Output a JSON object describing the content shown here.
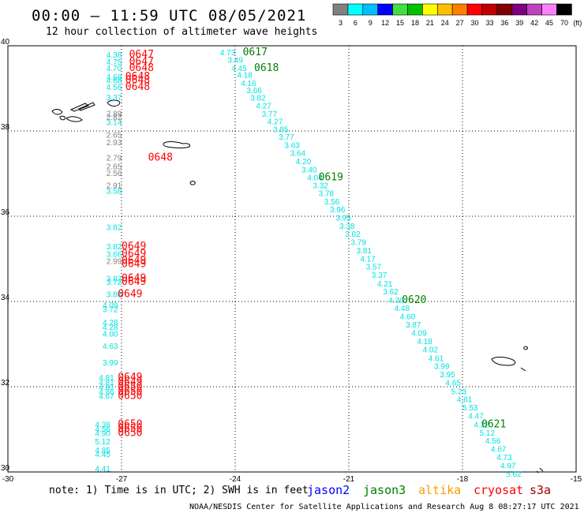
{
  "title": "00:00 – 11:59 UTC 08/05/2021",
  "subtitle": "12 hour collection of altimeter wave heights",
  "colorbar": {
    "colors": [
      "#808080",
      "#00ffff",
      "#00bfff",
      "#0000ff",
      "#40e040",
      "#00c000",
      "#ffff00",
      "#ffbf00",
      "#ff7f00",
      "#ff0000",
      "#c00000",
      "#800000",
      "#800080",
      "#c040c0",
      "#ff80ff",
      "#000000"
    ],
    "labels": [
      "3",
      "6",
      "9",
      "12",
      "15",
      "18",
      "21",
      "24",
      "27",
      "30",
      "33",
      "36",
      "39",
      "42",
      "45",
      "70"
    ],
    "unit": "(ft)"
  },
  "map": {
    "lon_range": [
      -30,
      -15
    ],
    "lat_range": [
      30,
      40
    ],
    "lon_ticks": [
      "-30",
      "-27",
      "-24",
      "-21",
      "-18",
      "-15"
    ],
    "lat_ticks": [
      "40",
      "38",
      "36",
      "34",
      "32",
      "30"
    ]
  },
  "passes": [
    {
      "satellite": "cryosat",
      "color": "#00e0e0",
      "label_color": "#ff0000",
      "points": [
        {
          "lon": -27.4,
          "lat": 39.8,
          "swh": "4.38"
        },
        {
          "lon": -27.4,
          "lat": 39.63,
          "swh": "4.75"
        },
        {
          "lon": -27.4,
          "lat": 39.48,
          "swh": "4.70"
        },
        {
          "lon": -27.4,
          "lat": 39.28,
          "swh": "4.68"
        },
        {
          "lon": -27.4,
          "lat": 39.19,
          "swh": "4.68"
        },
        {
          "lon": -27.4,
          "lat": 39.04,
          "swh": "4.56"
        },
        {
          "lon": -27.4,
          "lat": 38.8,
          "swh": "3.37"
        },
        {
          "lon": -27.4,
          "lat": 38.21,
          "swh": "3.14"
        },
        {
          "lon": -27.4,
          "lat": 36.6,
          "swh": "3.58"
        },
        {
          "lon": -27.4,
          "lat": 35.75,
          "swh": "3.82"
        },
        {
          "lon": -27.4,
          "lat": 35.3,
          "swh": "3.82"
        },
        {
          "lon": -27.4,
          "lat": 35.12,
          "swh": "3.66"
        },
        {
          "lon": -27.4,
          "lat": 34.55,
          "swh": "3.82"
        },
        {
          "lon": -27.4,
          "lat": 34.46,
          "swh": "3.72"
        },
        {
          "lon": -27.4,
          "lat": 34.18,
          "swh": "3.80"
        },
        {
          "lon": -27.5,
          "lat": 33.93,
          "swh": "4.09"
        },
        {
          "lon": -27.5,
          "lat": 33.82,
          "swh": "3.72"
        },
        {
          "lon": -27.5,
          "lat": 33.52,
          "swh": "4.28"
        },
        {
          "lon": -27.5,
          "lat": 33.41,
          "swh": "4.28"
        },
        {
          "lon": -27.5,
          "lat": 33.25,
          "swh": "4.00"
        },
        {
          "lon": -27.5,
          "lat": 32.96,
          "swh": "4.63"
        },
        {
          "lon": -27.5,
          "lat": 32.57,
          "swh": "3.99"
        },
        {
          "lon": -27.6,
          "lat": 32.22,
          "swh": "4.81"
        },
        {
          "lon": -27.6,
          "lat": 32.11,
          "swh": "4.81"
        },
        {
          "lon": -27.6,
          "lat": 32.0,
          "swh": "4.81"
        },
        {
          "lon": -27.6,
          "lat": 31.89,
          "swh": "4.86"
        },
        {
          "lon": -27.6,
          "lat": 31.79,
          "swh": "4.67"
        },
        {
          "lon": -27.7,
          "lat": 31.12,
          "swh": "4.38"
        },
        {
          "lon": -27.7,
          "lat": 31.02,
          "swh": "4.56"
        },
        {
          "lon": -27.7,
          "lat": 30.92,
          "swh": "4.90"
        },
        {
          "lon": -27.7,
          "lat": 30.72,
          "swh": "5.12"
        },
        {
          "lon": -27.7,
          "lat": 30.52,
          "swh": "4.85"
        },
        {
          "lon": -27.7,
          "lat": 30.43,
          "swh": "4.45"
        },
        {
          "lon": -27.7,
          "lat": 30.08,
          "swh": "4.41"
        }
      ]
    },
    {
      "satellite": "cryosat",
      "color": "#808080",
      "label_color": "#ff0000",
      "points": [
        {
          "lon": -27.4,
          "lat": 38.42,
          "swh": "2.89"
        },
        {
          "lon": -27.4,
          "lat": 38.33,
          "swh": "2.82"
        },
        {
          "lon": -27.4,
          "lat": 37.92,
          "swh": "2.65"
        },
        {
          "lon": -27.4,
          "lat": 37.74,
          "swh": "2.93"
        },
        {
          "lon": -27.4,
          "lat": 37.38,
          "swh": "2.79"
        },
        {
          "lon": -27.4,
          "lat": 37.18,
          "swh": "2.65"
        },
        {
          "lon": -27.4,
          "lat": 37.02,
          "swh": "2.56"
        },
        {
          "lon": -27.4,
          "lat": 36.73,
          "swh": "2.91"
        },
        {
          "lon": -27.4,
          "lat": 34.95,
          "swh": "2.99"
        }
      ]
    },
    {
      "satellite": "jason3",
      "color": "#00e0e0",
      "label_color": "#008000",
      "points": [
        {
          "lon": -24.4,
          "lat": 39.85,
          "swh": "4.73"
        },
        {
          "lon": -24.2,
          "lat": 39.68,
          "swh": "3.49"
        },
        {
          "lon": -24.1,
          "lat": 39.48,
          "swh": "4.45"
        },
        {
          "lon": -23.95,
          "lat": 39.32,
          "swh": "4.18"
        },
        {
          "lon": -23.85,
          "lat": 39.13,
          "swh": "4.16"
        },
        {
          "lon": -23.7,
          "lat": 38.96,
          "swh": "3.66"
        },
        {
          "lon": -23.6,
          "lat": 38.79,
          "swh": "3.82"
        },
        {
          "lon": -23.45,
          "lat": 38.6,
          "swh": "4.27"
        },
        {
          "lon": -23.3,
          "lat": 38.41,
          "swh": "3.77"
        },
        {
          "lon": -23.15,
          "lat": 38.23,
          "swh": "4.27"
        },
        {
          "lon": -23.0,
          "lat": 38.05,
          "swh": "3.85"
        },
        {
          "lon": -22.85,
          "lat": 37.87,
          "swh": "3.77"
        },
        {
          "lon": -22.7,
          "lat": 37.68,
          "swh": "3.63"
        },
        {
          "lon": -22.55,
          "lat": 37.49,
          "swh": "3.64"
        },
        {
          "lon": -22.4,
          "lat": 37.3,
          "swh": "4.20"
        },
        {
          "lon": -22.25,
          "lat": 37.1,
          "swh": "3.40"
        },
        {
          "lon": -22.1,
          "lat": 36.92,
          "swh": "4.04"
        },
        {
          "lon": -21.95,
          "lat": 36.73,
          "swh": "3.32"
        },
        {
          "lon": -21.8,
          "lat": 36.55,
          "swh": "3.78"
        },
        {
          "lon": -21.65,
          "lat": 36.35,
          "swh": "3.56"
        },
        {
          "lon": -21.5,
          "lat": 36.17,
          "swh": "3.96"
        },
        {
          "lon": -21.35,
          "lat": 35.97,
          "swh": "3.95"
        },
        {
          "lon": -21.25,
          "lat": 35.78,
          "swh": "3.38"
        },
        {
          "lon": -21.1,
          "lat": 35.59,
          "swh": "3.02"
        },
        {
          "lon": -20.95,
          "lat": 35.4,
          "swh": "3.79"
        },
        {
          "lon": -20.8,
          "lat": 35.2,
          "swh": "3.81"
        },
        {
          "lon": -20.7,
          "lat": 35.01,
          "swh": "4.17"
        },
        {
          "lon": -20.55,
          "lat": 34.82,
          "swh": "3.57"
        },
        {
          "lon": -20.4,
          "lat": 34.63,
          "swh": "3.37"
        },
        {
          "lon": -20.25,
          "lat": 34.43,
          "swh": "4.21"
        },
        {
          "lon": -20.1,
          "lat": 34.24,
          "swh": "3.62"
        },
        {
          "lon": -19.95,
          "lat": 34.04,
          "swh": "4.39"
        },
        {
          "lon": -19.8,
          "lat": 33.85,
          "swh": "4.48"
        },
        {
          "lon": -19.65,
          "lat": 33.66,
          "swh": "4.60"
        },
        {
          "lon": -19.5,
          "lat": 33.46,
          "swh": "3.87"
        },
        {
          "lon": -19.35,
          "lat": 33.27,
          "swh": "4.09"
        },
        {
          "lon": -19.2,
          "lat": 33.07,
          "swh": "4.18"
        },
        {
          "lon": -19.05,
          "lat": 32.88,
          "swh": "4.02"
        },
        {
          "lon": -18.9,
          "lat": 32.68,
          "swh": "4.61"
        },
        {
          "lon": -18.75,
          "lat": 32.49,
          "swh": "3.99"
        },
        {
          "lon": -18.6,
          "lat": 32.3,
          "swh": "3.95"
        },
        {
          "lon": -18.45,
          "lat": 32.1,
          "swh": "4.65"
        },
        {
          "lon": -18.3,
          "lat": 31.9,
          "swh": "5.23"
        },
        {
          "lon": -18.15,
          "lat": 31.71,
          "swh": "4.81"
        },
        {
          "lon": -18.0,
          "lat": 31.52,
          "swh": "5.53"
        },
        {
          "lon": -17.85,
          "lat": 31.32,
          "swh": "4.47"
        },
        {
          "lon": -17.7,
          "lat": 31.12,
          "swh": "4.22"
        },
        {
          "lon": -17.55,
          "lat": 30.93,
          "swh": "5.12"
        },
        {
          "lon": -17.4,
          "lat": 30.74,
          "swh": "4.56"
        },
        {
          "lon": -17.25,
          "lat": 30.55,
          "swh": "4.67"
        },
        {
          "lon": -17.1,
          "lat": 30.35,
          "swh": "4.73"
        },
        {
          "lon": -17.0,
          "lat": 30.16,
          "swh": "4.97"
        },
        {
          "lon": -16.85,
          "lat": 29.96,
          "swh": "5.62"
        }
      ]
    }
  ],
  "time_labels": [
    {
      "satellite": "jason3",
      "time": "0617",
      "lon": -23.8,
      "lat": 39.85
    },
    {
      "satellite": "jason3",
      "time": "0618",
      "lon": -23.5,
      "lat": 39.48
    },
    {
      "satellite": "jason3",
      "time": "0619",
      "lon": -21.8,
      "lat": 36.92
    },
    {
      "satellite": "jason3",
      "time": "0620",
      "lon": -19.6,
      "lat": 34.04
    },
    {
      "satellite": "jason3",
      "time": "0621",
      "lon": -17.5,
      "lat": 31.12
    },
    {
      "satellite": "cryosat",
      "time": "0647",
      "lon": -26.8,
      "lat": 39.8
    },
    {
      "satellite": "cryosat",
      "time": "0647",
      "lon": -26.8,
      "lat": 39.63
    },
    {
      "satellite": "cryosat",
      "time": "0648",
      "lon": -26.8,
      "lat": 39.48
    },
    {
      "satellite": "cryosat",
      "time": "0648",
      "lon": -26.9,
      "lat": 39.28
    },
    {
      "satellite": "cryosat",
      "time": "0648",
      "lon": -26.9,
      "lat": 39.19
    },
    {
      "satellite": "cryosat",
      "time": "0648",
      "lon": -26.9,
      "lat": 39.04
    },
    {
      "satellite": "cryosat",
      "time": "0648",
      "lon": -26.3,
      "lat": 37.38
    },
    {
      "satellite": "cryosat",
      "time": "0649",
      "lon": -27.0,
      "lat": 35.3
    },
    {
      "satellite": "cryosat",
      "time": "0649",
      "lon": -27.0,
      "lat": 35.12
    },
    {
      "satellite": "cryosat",
      "time": "0649",
      "lon": -27.0,
      "lat": 34.96
    },
    {
      "satellite": "cryosat",
      "time": "0649",
      "lon": -27.0,
      "lat": 34.88
    },
    {
      "satellite": "cryosat",
      "time": "0649",
      "lon": -27.0,
      "lat": 34.55
    },
    {
      "satellite": "cryosat",
      "time": "0649",
      "lon": -27.0,
      "lat": 34.46
    },
    {
      "satellite": "cryosat",
      "time": "0649",
      "lon": -27.1,
      "lat": 34.18
    },
    {
      "satellite": "cryosat",
      "time": "0649",
      "lon": -27.1,
      "lat": 32.22
    },
    {
      "satellite": "cryosat",
      "time": "0649",
      "lon": -27.1,
      "lat": 32.11
    },
    {
      "satellite": "cryosat",
      "time": "0650",
      "lon": -27.1,
      "lat": 32.0
    },
    {
      "satellite": "cryosat",
      "time": "0650",
      "lon": -27.1,
      "lat": 31.89
    },
    {
      "satellite": "cryosat",
      "time": "0650",
      "lon": -27.1,
      "lat": 31.79
    },
    {
      "satellite": "cryosat",
      "time": "0650",
      "lon": -27.1,
      "lat": 31.12
    },
    {
      "satellite": "cryosat",
      "time": "0650",
      "lon": -27.1,
      "lat": 31.02
    },
    {
      "satellite": "cryosat",
      "time": "0650",
      "lon": -27.1,
      "lat": 30.92
    }
  ],
  "note": "note: 1) Time is in UTC; 2) SWH is in feet",
  "legend": [
    {
      "name": "jason2",
      "color": "#0000ff"
    },
    {
      "name": "jason3",
      "color": "#008000"
    },
    {
      "name": "altika",
      "color": "#ff9900"
    },
    {
      "name": "cryosat",
      "color": "#ff0000"
    },
    {
      "name": "s3a",
      "color": "#a00000"
    }
  ],
  "footer": "NOAA/NESDIS Center for Satellite Applications and Research   Aug  8 08:27:17 UTC 2021"
}
